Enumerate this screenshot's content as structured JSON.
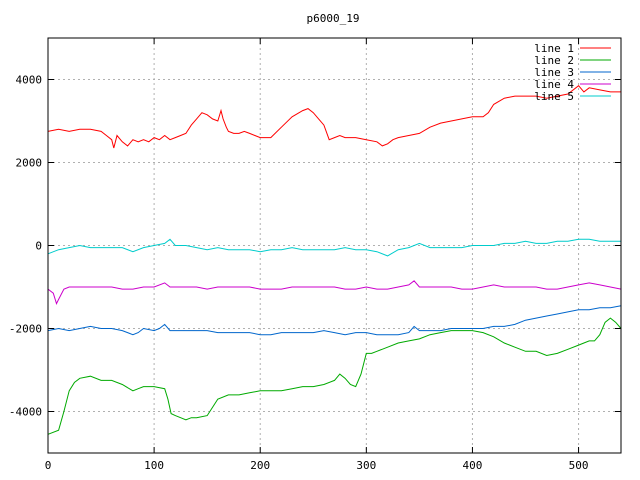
{
  "chart_data": {
    "type": "line",
    "title": "p6000_19",
    "xlabel": "",
    "ylabel": "",
    "xlim": [
      0,
      540
    ],
    "ylim": [
      -5000,
      5000
    ],
    "x_ticks": [
      0,
      100,
      200,
      300,
      400,
      500
    ],
    "y_ticks": [
      -4000,
      -2000,
      0,
      2000,
      4000
    ],
    "grid": true,
    "legend_position": "top-right",
    "series": [
      {
        "name": "line 1",
        "color": "#ff0000",
        "x": [
          0,
          10,
          20,
          30,
          40,
          50,
          55,
          60,
          62,
          65,
          70,
          75,
          80,
          85,
          90,
          95,
          100,
          105,
          110,
          115,
          120,
          125,
          130,
          135,
          140,
          145,
          150,
          155,
          160,
          163,
          165,
          168,
          170,
          175,
          180,
          185,
          190,
          195,
          200,
          210,
          220,
          230,
          240,
          245,
          250,
          255,
          260,
          265,
          270,
          275,
          280,
          290,
          300,
          310,
          315,
          320,
          325,
          330,
          340,
          350,
          360,
          370,
          380,
          390,
          400,
          410,
          415,
          420,
          430,
          440,
          450,
          460,
          470,
          480,
          490,
          500,
          505,
          510,
          520,
          530,
          540
        ],
        "y": [
          2750,
          2800,
          2750,
          2800,
          2800,
          2750,
          2650,
          2550,
          2350,
          2650,
          2500,
          2400,
          2550,
          2500,
          2550,
          2500,
          2600,
          2550,
          2650,
          2550,
          2600,
          2650,
          2700,
          2900,
          3050,
          3200,
          3150,
          3050,
          3000,
          3250,
          3050,
          2850,
          2750,
          2700,
          2700,
          2750,
          2700,
          2650,
          2600,
          2600,
          2850,
          3100,
          3250,
          3300,
          3200,
          3050,
          2900,
          2550,
          2600,
          2650,
          2600,
          2600,
          2550,
          2500,
          2400,
          2450,
          2550,
          2600,
          2650,
          2700,
          2850,
          2950,
          3000,
          3050,
          3100,
          3100,
          3200,
          3400,
          3550,
          3600,
          3600,
          3600,
          3550,
          3600,
          3650,
          3850,
          3700,
          3800,
          3750,
          3700,
          3700
        ]
      },
      {
        "name": "line 2",
        "color": "#00aa00",
        "x": [
          0,
          10,
          15,
          20,
          25,
          30,
          40,
          50,
          60,
          70,
          80,
          85,
          90,
          100,
          110,
          113,
          116,
          120,
          125,
          130,
          135,
          140,
          150,
          155,
          160,
          170,
          180,
          190,
          200,
          210,
          220,
          230,
          240,
          250,
          260,
          270,
          275,
          280,
          285,
          290,
          295,
          300,
          305,
          310,
          320,
          330,
          340,
          350,
          360,
          370,
          380,
          390,
          400,
          410,
          420,
          430,
          440,
          450,
          460,
          470,
          480,
          490,
          500,
          505,
          510,
          515,
          520,
          525,
          530,
          535,
          540
        ],
        "y": [
          -4550,
          -4450,
          -4000,
          -3500,
          -3300,
          -3200,
          -3150,
          -3250,
          -3250,
          -3350,
          -3500,
          -3450,
          -3400,
          -3400,
          -3450,
          -3700,
          -4050,
          -4100,
          -4150,
          -4200,
          -4150,
          -4150,
          -4100,
          -3900,
          -3700,
          -3600,
          -3600,
          -3550,
          -3500,
          -3500,
          -3500,
          -3450,
          -3400,
          -3400,
          -3350,
          -3250,
          -3100,
          -3200,
          -3350,
          -3400,
          -3100,
          -2600,
          -2600,
          -2550,
          -2450,
          -2350,
          -2300,
          -2250,
          -2150,
          -2100,
          -2050,
          -2050,
          -2050,
          -2100,
          -2200,
          -2350,
          -2450,
          -2550,
          -2550,
          -2650,
          -2600,
          -2500,
          -2400,
          -2350,
          -2300,
          -2300,
          -2150,
          -1850,
          -1750,
          -1850,
          -2000
        ]
      },
      {
        "name": "line 3",
        "color": "#0066cc",
        "x": [
          0,
          10,
          20,
          30,
          40,
          50,
          60,
          70,
          75,
          80,
          85,
          90,
          100,
          105,
          110,
          115,
          120,
          130,
          140,
          150,
          160,
          170,
          180,
          190,
          200,
          210,
          220,
          230,
          240,
          250,
          260,
          270,
          280,
          290,
          300,
          310,
          320,
          330,
          340,
          345,
          350,
          360,
          370,
          380,
          390,
          400,
          410,
          420,
          430,
          440,
          450,
          460,
          470,
          480,
          490,
          500,
          510,
          520,
          530,
          540
        ],
        "y": [
          -2050,
          -2000,
          -2050,
          -2000,
          -1950,
          -2000,
          -2000,
          -2050,
          -2100,
          -2150,
          -2100,
          -2000,
          -2050,
          -2000,
          -1900,
          -2050,
          -2050,
          -2050,
          -2050,
          -2050,
          -2100,
          -2100,
          -2100,
          -2100,
          -2150,
          -2150,
          -2100,
          -2100,
          -2100,
          -2100,
          -2050,
          -2100,
          -2150,
          -2100,
          -2100,
          -2150,
          -2150,
          -2150,
          -2100,
          -1950,
          -2050,
          -2050,
          -2050,
          -2000,
          -2000,
          -2000,
          -2000,
          -1950,
          -1950,
          -1900,
          -1800,
          -1750,
          -1700,
          -1650,
          -1600,
          -1550,
          -1550,
          -1500,
          -1500,
          -1450
        ]
      },
      {
        "name": "line 4",
        "color": "#cc00cc",
        "x": [
          0,
          5,
          8,
          10,
          15,
          20,
          30,
          40,
          50,
          60,
          70,
          80,
          90,
          100,
          110,
          115,
          120,
          130,
          140,
          150,
          160,
          170,
          180,
          190,
          200,
          210,
          220,
          230,
          240,
          250,
          260,
          270,
          280,
          290,
          300,
          310,
          320,
          330,
          340,
          345,
          350,
          360,
          370,
          380,
          390,
          400,
          410,
          420,
          430,
          440,
          450,
          460,
          470,
          480,
          490,
          500,
          510,
          520,
          530,
          540
        ],
        "y": [
          -1050,
          -1150,
          -1400,
          -1300,
          -1050,
          -1000,
          -1000,
          -1000,
          -1000,
          -1000,
          -1050,
          -1050,
          -1000,
          -1000,
          -900,
          -1000,
          -1000,
          -1000,
          -1000,
          -1050,
          -1000,
          -1000,
          -1000,
          -1000,
          -1050,
          -1050,
          -1050,
          -1000,
          -1000,
          -1000,
          -1000,
          -1000,
          -1050,
          -1050,
          -1000,
          -1050,
          -1050,
          -1000,
          -950,
          -850,
          -1000,
          -1000,
          -1000,
          -1000,
          -1050,
          -1050,
          -1000,
          -950,
          -1000,
          -1000,
          -1000,
          -1000,
          -1050,
          -1050,
          -1000,
          -950,
          -900,
          -950,
          -1000,
          -1050
        ]
      },
      {
        "name": "line 5",
        "color": "#00cccc",
        "x": [
          0,
          10,
          20,
          30,
          40,
          50,
          60,
          70,
          80,
          90,
          100,
          110,
          115,
          120,
          130,
          140,
          150,
          160,
          170,
          180,
          190,
          200,
          210,
          220,
          230,
          240,
          250,
          260,
          270,
          280,
          290,
          300,
          310,
          320,
          330,
          340,
          350,
          360,
          370,
          380,
          390,
          400,
          410,
          420,
          430,
          440,
          450,
          460,
          470,
          480,
          490,
          500,
          510,
          520,
          530,
          540
        ],
        "y": [
          -200,
          -100,
          -50,
          0,
          -50,
          -50,
          -50,
          -50,
          -150,
          -50,
          0,
          50,
          150,
          0,
          0,
          -50,
          -100,
          -50,
          -100,
          -100,
          -100,
          -150,
          -100,
          -100,
          -50,
          -100,
          -100,
          -100,
          -100,
          -50,
          -100,
          -100,
          -150,
          -250,
          -100,
          -50,
          50,
          -50,
          -50,
          -50,
          -50,
          0,
          0,
          0,
          50,
          50,
          100,
          50,
          50,
          100,
          100,
          150,
          150,
          100,
          100,
          100
        ]
      }
    ]
  }
}
